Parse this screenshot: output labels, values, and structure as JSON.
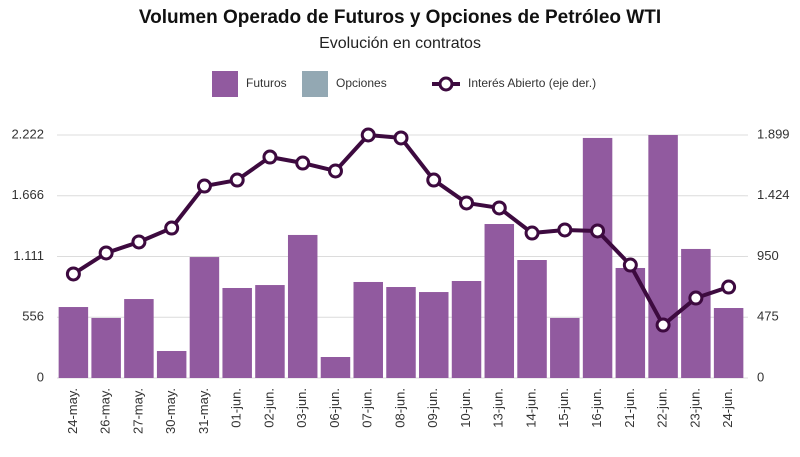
{
  "chart_data": {
    "type": "bar+line",
    "title": "Volumen Operado de Futuros y Opciones de Petróleo WTI",
    "subtitle": "Evolución en contratos",
    "categories": [
      "24-may.",
      "26-may.",
      "27-may.",
      "30-may.",
      "31-may.",
      "01-jun.",
      "02-jun.",
      "03-jun.",
      "06-jun.",
      "07-jun.",
      "08-jun.",
      "09-jun.",
      "10-jun.",
      "13-jun.",
      "14-jun.",
      "15-jun.",
      "16-jun.",
      "21-jun.",
      "22-jun.",
      "23-jun.",
      "24-jun."
    ],
    "series": [
      {
        "name": "Futuros",
        "type": "bar",
        "color": "#915a9f",
        "values": [
          649,
          549,
          722,
          247,
          1106,
          823,
          850,
          1308,
          192,
          878,
          832,
          786,
          887,
          1408,
          1079,
          549,
          2195,
          1006,
          2222,
          1180,
          640
        ]
      },
      {
        "name": "Opciones",
        "type": "bar",
        "color": "#93a8b3",
        "values": [
          null,
          null,
          null,
          null,
          null,
          null,
          null,
          null,
          null,
          null,
          null,
          null,
          null,
          null,
          null,
          null,
          null,
          null,
          null,
          null,
          null
        ]
      },
      {
        "name": "Interés Abierto (eje der.)",
        "type": "line",
        "axis": "y2",
        "color": "#3d0a3f",
        "values": [
          813,
          977,
          1063,
          1172,
          1500,
          1547,
          1727,
          1680,
          1618,
          1899,
          1876,
          1547,
          1368,
          1329,
          1133,
          1157,
          1149,
          883,
          414,
          625,
          711
        ]
      }
    ],
    "ylim": [
      0,
      2222
    ],
    "yticks": [
      0,
      556,
      {
        "value": 1111,
        "label": "1.111"
      },
      {
        "value": 1666,
        "label": "1.666"
      },
      {
        "value": 2222,
        "label": "2.222"
      }
    ],
    "y2lim": [
      0,
      1899
    ],
    "y2ticks": [
      0,
      475,
      950,
      {
        "value": 1424,
        "label": "1.424"
      },
      {
        "value": 1899,
        "label": "1.899"
      }
    ],
    "grid": true,
    "legend": "top"
  }
}
